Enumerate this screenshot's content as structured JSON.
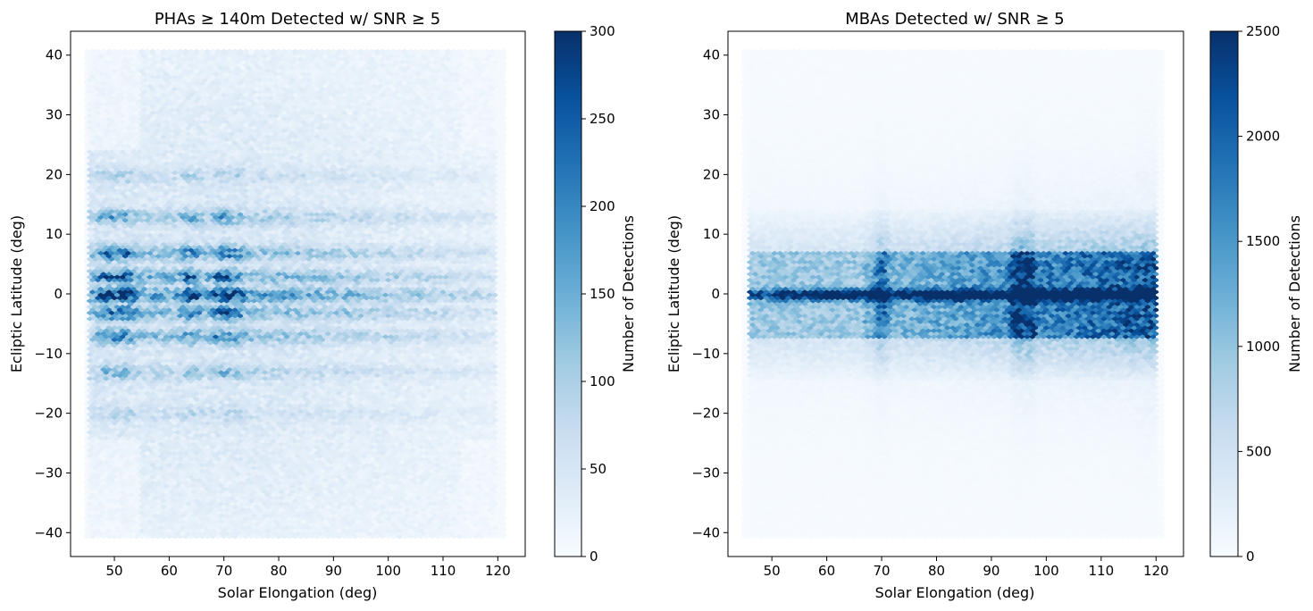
{
  "chart_data": [
    {
      "type": "heatmap",
      "subtype": "hexbin",
      "title": "PHAs ≥ 140m Detected w/ SNR ≥ 5",
      "xlabel": "Solar Elongation (deg)",
      "ylabel": "Ecliptic Latitude (deg)",
      "xlim": [
        42,
        125
      ],
      "ylim": [
        -44,
        44
      ],
      "xticks": [
        50,
        60,
        70,
        80,
        90,
        100,
        110,
        120
      ],
      "yticks": [
        40,
        30,
        20,
        10,
        0,
        -10,
        -20,
        -30,
        -40
      ],
      "xtick_labels": [
        "50",
        "60",
        "70",
        "80",
        "90",
        "100",
        "110",
        "120"
      ],
      "ytick_labels": [
        "40",
        "30",
        "20",
        "10",
        "0",
        "−10",
        "−20",
        "−30",
        "−40"
      ],
      "hex_extent": {
        "x": [
          45,
          121
        ],
        "y": [
          -40.5,
          40.5
        ]
      },
      "colorbar": {
        "label": "Number of Detections",
        "cmap": "Blues",
        "range": [
          0,
          300
        ],
        "ticks": [
          0,
          50,
          100,
          150,
          200,
          250,
          300
        ],
        "tick_labels": [
          "0",
          "50",
          "100",
          "150",
          "200",
          "250",
          "300"
        ]
      },
      "density": {
        "x_range": [
          47,
          118
        ],
        "x_fade_start": 75,
        "x_fade_end": 118,
        "peak_columns": [
          {
            "x": 49,
            "value": 300
          },
          {
            "x": 52,
            "value": 290
          },
          {
            "x": 64,
            "value": 260
          },
          {
            "x": 70,
            "value": 290
          },
          {
            "x": 72,
            "value": 240
          }
        ],
        "latitude_bands": [
          {
            "lat": 0,
            "value": 280
          },
          {
            "lat": 3,
            "value": 200
          },
          {
            "lat": -3,
            "value": 190
          },
          {
            "lat": 7,
            "value": 170
          },
          {
            "lat": -7,
            "value": 160
          },
          {
            "lat": 13,
            "value": 120
          },
          {
            "lat": -13,
            "value": 90
          },
          {
            "lat": 20,
            "value": 60
          },
          {
            "lat": -20,
            "value": 50
          }
        ],
        "background": 15,
        "halo_lat": 30
      }
    },
    {
      "type": "heatmap",
      "subtype": "hexbin",
      "title": "MBAs Detected w/ SNR ≥ 5",
      "xlabel": "Solar Elongation (deg)",
      "ylabel": "Ecliptic Latitude (deg)",
      "xlim": [
        42,
        125
      ],
      "ylim": [
        -44,
        44
      ],
      "xticks": [
        50,
        60,
        70,
        80,
        90,
        100,
        110,
        120
      ],
      "yticks": [
        40,
        30,
        20,
        10,
        0,
        -10,
        -20,
        -30,
        -40
      ],
      "xtick_labels": [
        "50",
        "60",
        "70",
        "80",
        "90",
        "100",
        "110",
        "120"
      ],
      "ytick_labels": [
        "40",
        "30",
        "20",
        "10",
        "0",
        "−10",
        "−20",
        "−30",
        "−40"
      ],
      "hex_extent": {
        "x": [
          45,
          121
        ],
        "y": [
          -40.5,
          40.5
        ]
      },
      "colorbar": {
        "label": "Number of Detections",
        "cmap": "Blues",
        "range": [
          0,
          2500
        ],
        "ticks": [
          0,
          500,
          1000,
          1500,
          2000,
          2500
        ],
        "tick_labels": [
          "0",
          "500",
          "1000",
          "1500",
          "2000",
          "2500"
        ]
      },
      "density": {
        "x_range": [
          46,
          120
        ],
        "lat_core": 7,
        "lat_outer": 14,
        "core_value": 1700,
        "peak_columns": [
          {
            "x": 70,
            "value": 1900
          },
          {
            "x": 95,
            "value": 2600
          },
          {
            "x": 97,
            "value": 2500
          }
        ],
        "ramp_from": {
          "x": 75,
          "value": 1200
        },
        "ramp_to": {
          "x": 118,
          "value": 2100
        },
        "equator_value": 2300,
        "background": 20
      }
    }
  ]
}
